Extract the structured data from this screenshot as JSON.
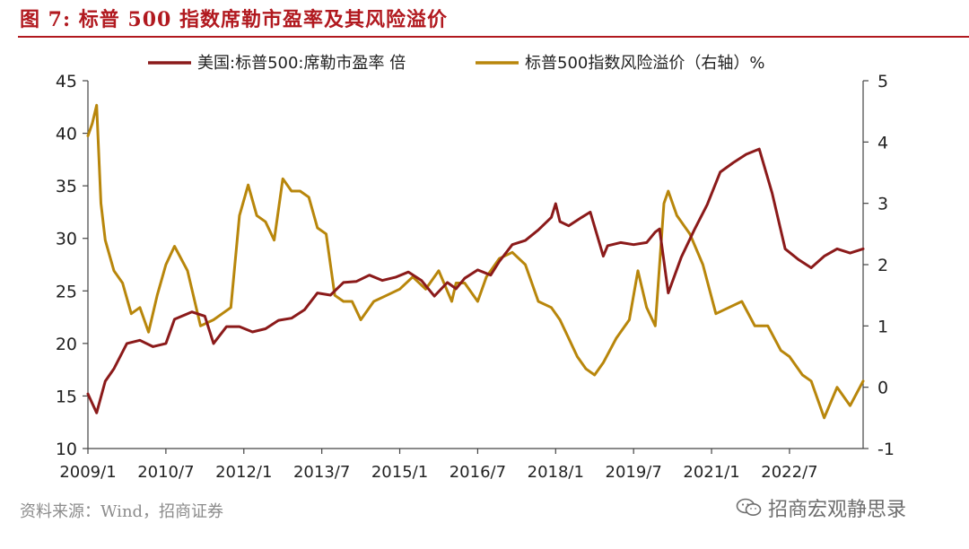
{
  "figure": {
    "title": "图 7:  标普 500 指数席勒市盈率及其风险溢价",
    "source": "资料来源：Wind，招商证券",
    "watermark": "招商宏观静思录",
    "watermark_icon": "wechat-icon",
    "accent_color": "#b1191f"
  },
  "chart_data": {
    "type": "line",
    "x_start": "2009/1",
    "x_end": "2023/12",
    "x_ticks": [
      "2009/1",
      "2010/7",
      "2012/1",
      "2013/7",
      "2015/1",
      "2016/7",
      "2018/1",
      "2019/7",
      "2021/1",
      "2022/7"
    ],
    "y_left": {
      "min": 10,
      "max": 45,
      "ticks": [
        10,
        15,
        20,
        25,
        30,
        35,
        40,
        45
      ]
    },
    "y_right": {
      "min": -1,
      "max": 5,
      "ticks": [
        -1,
        0,
        1,
        2,
        3,
        4,
        5
      ]
    },
    "grid": false,
    "legend_position": "top",
    "series": [
      {
        "name": "美国:标普500:席勒市盈率 倍",
        "axis": "left",
        "color": "#8b1a1a",
        "x": [
          "2009/1",
          "2009/3",
          "2009/5",
          "2009/7",
          "2009/10",
          "2010/1",
          "2010/4",
          "2010/7",
          "2010/9",
          "2011/1",
          "2011/4",
          "2011/6",
          "2011/9",
          "2011/12",
          "2012/3",
          "2012/6",
          "2012/9",
          "2012/12",
          "2013/3",
          "2013/6",
          "2013/9",
          "2013/12",
          "2014/3",
          "2014/6",
          "2014/9",
          "2014/12",
          "2015/3",
          "2015/6",
          "2015/9",
          "2015/12",
          "2016/2",
          "2016/4",
          "2016/7",
          "2016/10",
          "2016/12",
          "2017/3",
          "2017/6",
          "2017/9",
          "2017/12",
          "2018/1",
          "2018/2",
          "2018/4",
          "2018/7",
          "2018/9",
          "2018/12",
          "2019/1",
          "2019/4",
          "2019/7",
          "2019/10",
          "2019/12",
          "2020/1",
          "2020/3",
          "2020/6",
          "2020/9",
          "2020/12",
          "2021/3",
          "2021/6",
          "2021/9",
          "2021/12",
          "2022/3",
          "2022/6",
          "2022/9",
          "2022/12",
          "2023/3",
          "2023/6",
          "2023/9",
          "2023/12"
        ],
        "y": [
          15.2,
          13.4,
          16.4,
          17.6,
          20.0,
          20.3,
          19.7,
          20.0,
          22.3,
          23.0,
          22.6,
          20.0,
          21.6,
          21.6,
          21.1,
          21.4,
          22.2,
          22.4,
          23.2,
          24.8,
          24.6,
          25.8,
          25.9,
          26.5,
          26.0,
          26.3,
          26.8,
          26.0,
          24.5,
          25.8,
          25.2,
          26.2,
          27.0,
          26.5,
          27.8,
          29.4,
          29.8,
          30.8,
          32.0,
          33.3,
          31.6,
          31.2,
          32.0,
          32.5,
          28.3,
          29.3,
          29.6,
          29.4,
          29.6,
          30.6,
          30.9,
          24.8,
          28.2,
          30.8,
          33.2,
          36.3,
          37.2,
          38.0,
          38.5,
          34.3,
          29.0,
          28.0,
          27.2,
          28.3,
          29.0,
          28.6,
          29.0
        ]
      },
      {
        "name": "标普500指数风险溢价（右轴）%",
        "axis": "right",
        "color": "#b8860b",
        "x": [
          "2009/1",
          "2009/2",
          "2009/3",
          "2009/4",
          "2009/5",
          "2009/7",
          "2009/9",
          "2009/11",
          "2010/1",
          "2010/3",
          "2010/5",
          "2010/7",
          "2010/9",
          "2010/12",
          "2011/3",
          "2011/6",
          "2011/8",
          "2011/10",
          "2011/12",
          "2012/2",
          "2012/4",
          "2012/6",
          "2012/8",
          "2012/10",
          "2012/12",
          "2013/2",
          "2013/4",
          "2013/6",
          "2013/8",
          "2013/10",
          "2013/12",
          "2014/2",
          "2014/4",
          "2014/7",
          "2014/10",
          "2015/1",
          "2015/4",
          "2015/7",
          "2015/10",
          "2016/1",
          "2016/2",
          "2016/4",
          "2016/7",
          "2016/9",
          "2016/12",
          "2017/3",
          "2017/6",
          "2017/9",
          "2017/12",
          "2018/2",
          "2018/4",
          "2018/6",
          "2018/8",
          "2018/10",
          "2018/12",
          "2019/3",
          "2019/6",
          "2019/8",
          "2019/10",
          "2019/12",
          "2020/2",
          "2020/3",
          "2020/5",
          "2020/8",
          "2020/11",
          "2021/2",
          "2021/5",
          "2021/8",
          "2021/11",
          "2022/2",
          "2022/5",
          "2022/7",
          "2022/10",
          "2022/12",
          "2023/3",
          "2023/6",
          "2023/9",
          "2023/12"
        ],
        "y": [
          4.1,
          4.3,
          4.6,
          3.0,
          2.4,
          1.9,
          1.7,
          1.2,
          1.3,
          0.9,
          1.5,
          2.0,
          2.3,
          1.9,
          1.0,
          1.1,
          1.2,
          1.3,
          2.8,
          3.3,
          2.8,
          2.7,
          2.4,
          3.4,
          3.2,
          3.2,
          3.1,
          2.6,
          2.5,
          1.5,
          1.4,
          1.4,
          1.1,
          1.4,
          1.5,
          1.6,
          1.8,
          1.6,
          1.9,
          1.4,
          1.7,
          1.7,
          1.4,
          1.8,
          2.1,
          2.2,
          2.0,
          1.4,
          1.3,
          1.1,
          0.8,
          0.5,
          0.3,
          0.2,
          0.4,
          0.8,
          1.1,
          1.9,
          1.3,
          1.0,
          3.0,
          3.2,
          2.8,
          2.5,
          2.0,
          1.2,
          1.3,
          1.4,
          1.0,
          1.0,
          0.6,
          0.5,
          0.2,
          0.1,
          -0.5,
          0.0,
          -0.3,
          0.1
        ]
      }
    ]
  }
}
